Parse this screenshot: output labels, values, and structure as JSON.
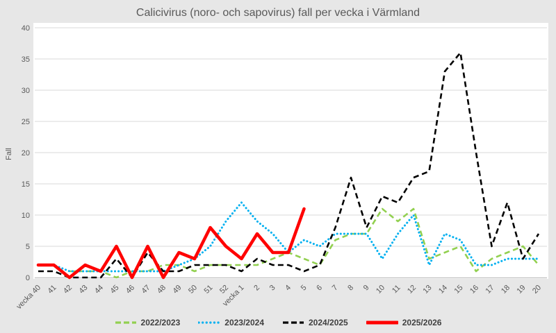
{
  "title": "Calicivirus (noro- och sapovirus) fall per vecka i Värmland",
  "chart_data": {
    "type": "line",
    "title": "Calicivirus (noro- och sapovirus) fall per vecka i Värmland",
    "xlabel": "",
    "ylabel": "Fall",
    "ylim": [
      0,
      40
    ],
    "y_ticks": [
      0,
      5,
      10,
      15,
      20,
      25,
      30,
      35,
      40
    ],
    "grid": "horizontal",
    "legend_position": "bottom",
    "categories": [
      "vecka 40",
      "41",
      "42",
      "43",
      "44",
      "45",
      "46",
      "47",
      "48",
      "49",
      "50",
      "51",
      "52",
      "vecka 1",
      "2",
      "3",
      "4",
      "5",
      "6",
      "7",
      "8",
      "9",
      "10",
      "11",
      "12",
      "13",
      "14",
      "15",
      "16",
      "17",
      "18",
      "19",
      "20"
    ],
    "series": [
      {
        "name": "2022/2023",
        "color": "#92d050",
        "style": "dashed",
        "values": [
          null,
          null,
          1,
          1,
          1,
          0,
          1,
          1,
          2,
          2,
          1,
          2,
          2,
          2,
          2,
          3,
          4,
          3,
          2,
          6,
          7,
          7,
          11,
          9,
          11,
          3,
          4,
          5,
          1,
          3,
          4,
          5,
          2
        ]
      },
      {
        "name": "2023/2024",
        "color": "#00b0f0",
        "style": "dotted",
        "values": [
          2,
          2,
          1,
          1,
          1,
          1,
          1,
          1,
          1,
          2,
          3,
          5,
          9,
          12,
          9,
          7,
          4,
          6,
          5,
          7,
          7,
          7,
          3,
          7,
          10,
          2,
          7,
          6,
          2,
          2,
          3,
          3,
          3
        ]
      },
      {
        "name": "2024/2025",
        "color": "#000000",
        "style": "dashed",
        "values": [
          1,
          1,
          0,
          0,
          0,
          3,
          0,
          4,
          1,
          1,
          2,
          2,
          2,
          1,
          3,
          2,
          2,
          1,
          2,
          8,
          16,
          8,
          13,
          12,
          16,
          17,
          33,
          36,
          20,
          5,
          12,
          3,
          7
        ]
      },
      {
        "name": "2025/2026",
        "color": "#ff0000",
        "style": "solid",
        "values": [
          2,
          2,
          0,
          2,
          1,
          5,
          0,
          5,
          0,
          4,
          3,
          8,
          5,
          3,
          7,
          4,
          4,
          11,
          null,
          null,
          null,
          null,
          null,
          null,
          null,
          null,
          null,
          null,
          null,
          null,
          null,
          null,
          null
        ]
      }
    ]
  },
  "colors": {
    "background": "#e7e7e7",
    "plot_background": "#ffffff",
    "gridline": "#d9d9d9",
    "axis_line": "#bfbfbf",
    "tick_text": "#595959",
    "title_text": "#595959",
    "legend_text": "#404040"
  }
}
